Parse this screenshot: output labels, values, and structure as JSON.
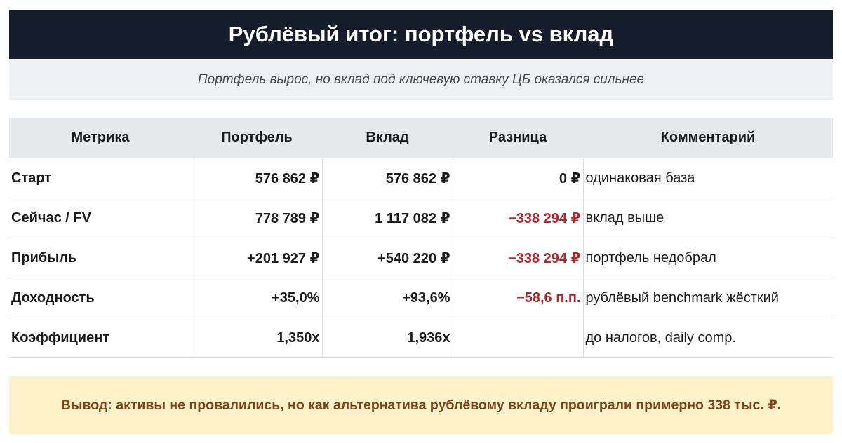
{
  "header": {
    "title": "Рублёвый итог: портфель vs вклад"
  },
  "subtitle": "Портфель вырос, но вклад под ключевую ставку ЦБ оказался сильнее",
  "table": {
    "columns": [
      "Метрика",
      "Портфель",
      "Вклад",
      "Разница",
      "Комментарий"
    ],
    "rows": [
      {
        "metric": "Старт",
        "portfolio": "576 862 ₽",
        "deposit": "576 862 ₽",
        "diff": "0 ₽",
        "comment": "одинаковая база"
      },
      {
        "metric": "Сейчас / FV",
        "portfolio": "778 789 ₽",
        "deposit": "1 117 082 ₽",
        "diff": "−338 294 ₽",
        "comment": "вклад выше"
      },
      {
        "metric": "Прибыль",
        "portfolio": "+201 927 ₽",
        "deposit": "+540 220 ₽",
        "diff": "−338 294 ₽",
        "comment": "портфель недобрал"
      },
      {
        "metric": "Доходность",
        "portfolio": "+35,0%",
        "deposit": "+93,6%",
        "diff": "−58,6 п.п.",
        "comment": "рублёвый benchmark жёсткий"
      },
      {
        "metric": "Коэффициент",
        "portfolio": "1,350x",
        "deposit": "1,936x",
        "diff": "",
        "comment": "до налогов, daily comp."
      }
    ]
  },
  "conclusion": "Вывод: активы не провалились, но как альтернатива рублёвому вкладу проиграли примерно 338 тыс. ₽.",
  "colors": {
    "header_bg": "#151d2c",
    "negative": "#b0282c",
    "conclusion_bg": "#fdf1c9",
    "conclusion_text": "#7b4317"
  }
}
